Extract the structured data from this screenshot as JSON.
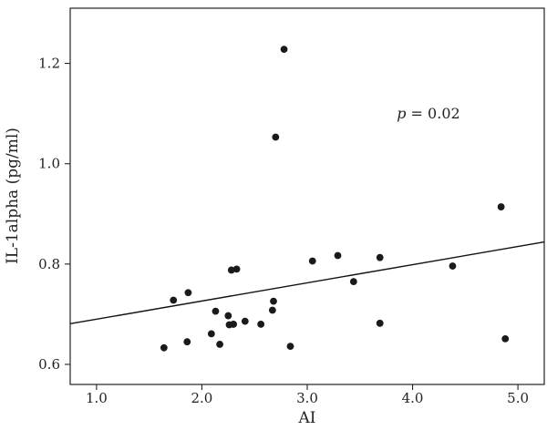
{
  "chart_data": {
    "type": "scatter",
    "xlabel": "AI",
    "ylabel": "IL-1alpha (pg/ml)",
    "xlim": [
      0.75,
      5.25
    ],
    "ylim": [
      0.56,
      1.31
    ],
    "x_ticks": [
      1.0,
      2.0,
      3.0,
      4.0,
      5.0
    ],
    "x_tick_labels": [
      "1.0",
      "2.0",
      "3.0",
      "4.0",
      "5.0"
    ],
    "y_ticks": [
      0.6,
      0.8,
      1.0,
      1.2
    ],
    "y_tick_labels": [
      "0.6",
      "0.8",
      "1.0",
      "1.2"
    ],
    "grid": false,
    "points": [
      {
        "x": 1.64,
        "y": 0.633
      },
      {
        "x": 1.73,
        "y": 0.728
      },
      {
        "x": 1.86,
        "y": 0.645
      },
      {
        "x": 1.87,
        "y": 0.743
      },
      {
        "x": 2.09,
        "y": 0.661
      },
      {
        "x": 2.13,
        "y": 0.706
      },
      {
        "x": 2.17,
        "y": 0.64
      },
      {
        "x": 2.25,
        "y": 0.697
      },
      {
        "x": 2.26,
        "y": 0.679
      },
      {
        "x": 2.28,
        "y": 0.788
      },
      {
        "x": 2.3,
        "y": 0.68
      },
      {
        "x": 2.33,
        "y": 0.79
      },
      {
        "x": 2.41,
        "y": 0.686
      },
      {
        "x": 2.56,
        "y": 0.68
      },
      {
        "x": 2.67,
        "y": 0.708
      },
      {
        "x": 2.68,
        "y": 0.726
      },
      {
        "x": 2.7,
        "y": 1.053
      },
      {
        "x": 2.78,
        "y": 1.228
      },
      {
        "x": 2.84,
        "y": 0.636
      },
      {
        "x": 3.05,
        "y": 0.806
      },
      {
        "x": 3.29,
        "y": 0.817
      },
      {
        "x": 3.44,
        "y": 0.765
      },
      {
        "x": 3.69,
        "y": 0.813
      },
      {
        "x": 3.69,
        "y": 0.682
      },
      {
        "x": 4.38,
        "y": 0.796
      },
      {
        "x": 4.84,
        "y": 0.914
      },
      {
        "x": 4.88,
        "y": 0.651
      }
    ],
    "trend_line": {
      "x": [
        0.75,
        5.25
      ],
      "y": [
        0.681,
        0.844
      ]
    },
    "annotation": {
      "p_symbol": "p",
      "p_rest": " = 0.02",
      "x": 3.85,
      "y": 1.09
    }
  }
}
